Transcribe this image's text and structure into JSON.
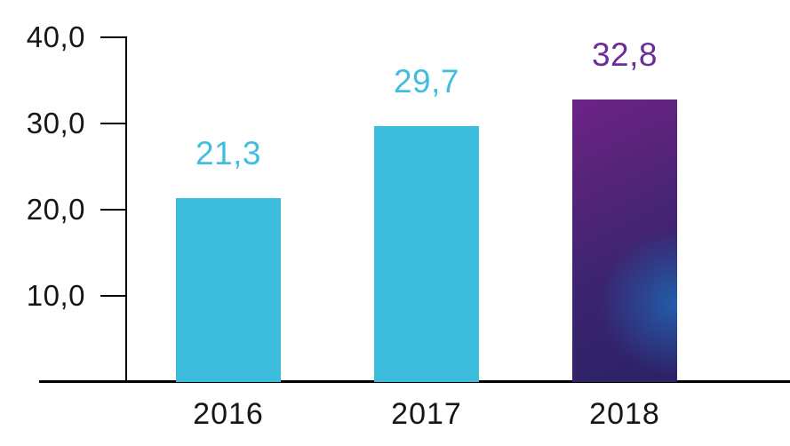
{
  "chart_data": {
    "type": "bar",
    "title": "",
    "xlabel": "",
    "ylabel": "",
    "categories": [
      "2016",
      "2017",
      "2018"
    ],
    "values": [
      21.3,
      29.7,
      32.8
    ],
    "value_labels": [
      "21,3",
      "29,7",
      "32,8"
    ],
    "y_ticks": [
      10,
      20,
      30,
      40
    ],
    "y_tick_labels": [
      "10,0",
      "20,0",
      "30,0",
      "40,0"
    ],
    "ylim": [
      0,
      40
    ],
    "grid": false,
    "legend": false,
    "decimal_separator": ",",
    "colors": {
      "bar_cyan": "#3dbdde",
      "bar_gradient_purple_top": "#6d2387",
      "bar_gradient_indigo_bottom": "#2b2266",
      "bar_gradient_blue_glow": "#2162b0",
      "value_label_cyan": "#3fbee0",
      "value_label_purple": "#6c2d96",
      "axis": "#000000",
      "tick_text": "#161616"
    },
    "bar_styles": [
      "cyan",
      "cyan",
      "gradient-purple-blue"
    ],
    "value_label_colors": [
      "#3fbee0",
      "#3fbee0",
      "#6c2d96"
    ]
  }
}
